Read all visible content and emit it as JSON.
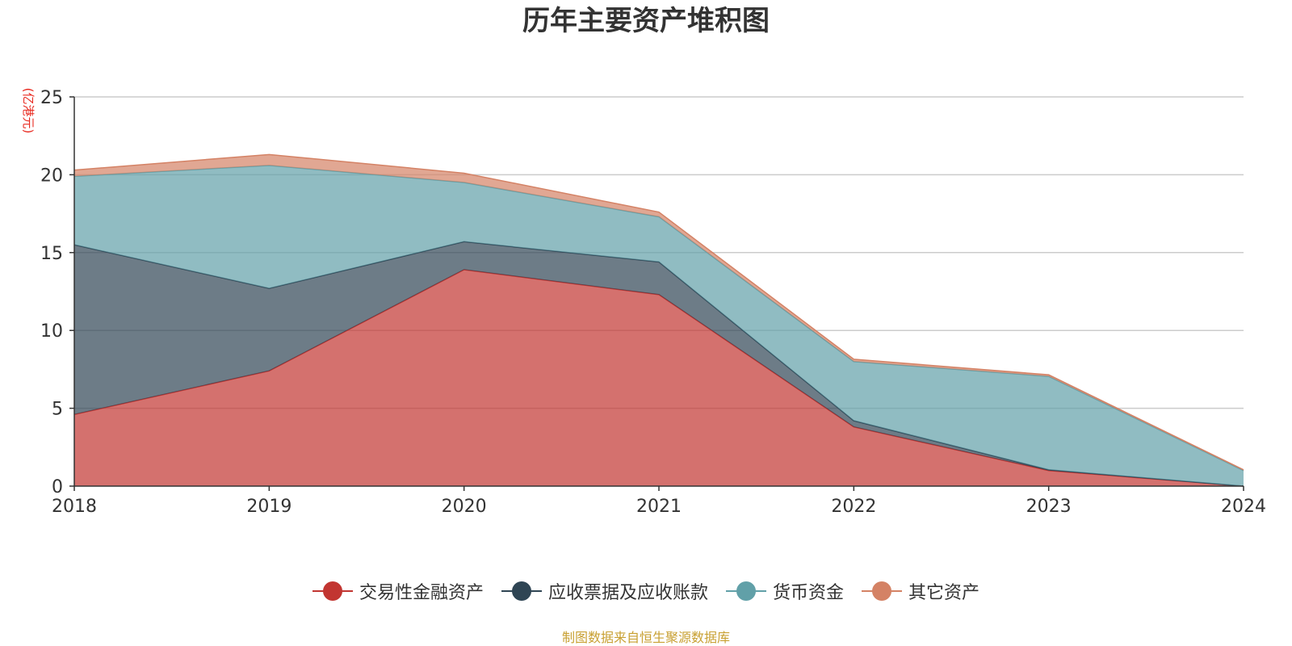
{
  "chart_data": {
    "type": "area",
    "stacked": true,
    "title": "历年主要资产堆积图",
    "unit_label": "(亿港元)",
    "x": [
      "2018",
      "2019",
      "2020",
      "2021",
      "2022",
      "2023",
      "2024"
    ],
    "ylim": [
      0,
      25
    ],
    "yticks": [
      "0",
      "5",
      "10",
      "15",
      "20",
      "25"
    ],
    "grid": true,
    "legend_position": "bottom",
    "series": [
      {
        "name": "交易性金融资产",
        "color": "#c23531",
        "values": [
          4.6,
          7.4,
          13.9,
          12.3,
          3.8,
          1.0,
          0.0
        ]
      },
      {
        "name": "应收票据及应收账款",
        "color": "#2f4554",
        "values": [
          10.9,
          5.3,
          1.8,
          2.1,
          0.4,
          0.05,
          0.0
        ]
      },
      {
        "name": "货币资金",
        "color": "#61a0a8",
        "values": [
          4.4,
          7.9,
          3.8,
          2.9,
          3.8,
          6.0,
          1.0
        ]
      },
      {
        "name": "其它资产",
        "color": "#d48265",
        "values": [
          0.4,
          0.7,
          0.6,
          0.3,
          0.15,
          0.1,
          0.05
        ]
      }
    ]
  },
  "source_note": "制图数据来自恒生聚源数据库"
}
